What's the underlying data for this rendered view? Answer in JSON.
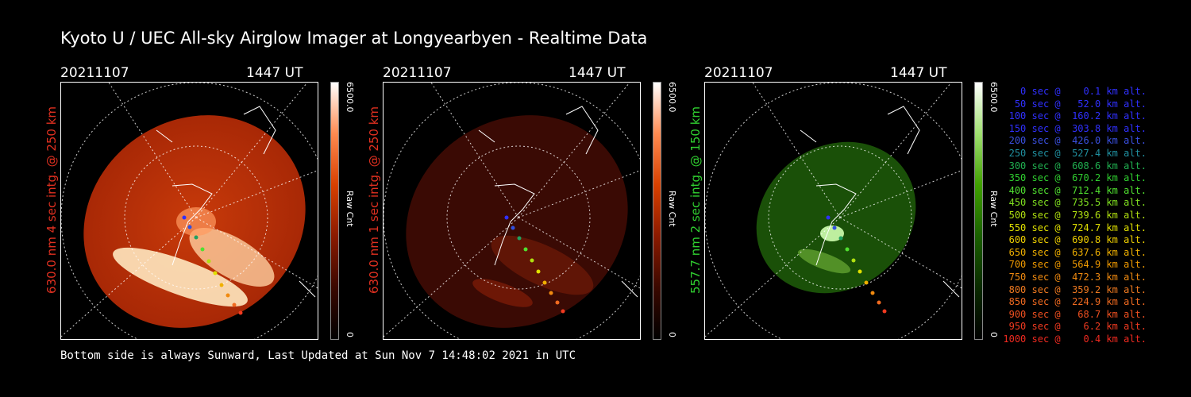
{
  "title": "Kyoto U / UEC All-sky Airglow Imager at Longyearbyen - Realtime Data",
  "panels": [
    {
      "date": "20211107",
      "time": "1447 UT",
      "side_label": "630.0 nm 4 sec intg. @ 250 km",
      "label_color": "#e03020",
      "colorbar": {
        "max": "6500.0",
        "min": "0",
        "unit": "Raw Cnt",
        "gradient": [
          "#000000",
          "#3a0800",
          "#8a1a00",
          "#d84000",
          "#ff8a50",
          "#ffffff"
        ]
      }
    },
    {
      "date": "20211107",
      "time": "1447 UT",
      "side_label": "630.0 nm 1 sec intg. @ 250 km",
      "label_color": "#e03020",
      "colorbar": {
        "max": "6500.0",
        "min": "0",
        "unit": "Raw Cnt",
        "gradient": [
          "#000000",
          "#3a0800",
          "#8a1a00",
          "#d84000",
          "#ff8a50",
          "#ffffff"
        ]
      }
    },
    {
      "date": "20211107",
      "time": "1447 UT",
      "side_label": "557.7 nm 2 sec intg. @ 150 km",
      "label_color": "#30d030",
      "colorbar": {
        "max": "6500.0",
        "min": "0",
        "unit": "Raw Cnt",
        "gradient": [
          "#000000",
          "#0a2a00",
          "#1a6000",
          "#40a000",
          "#a0e070",
          "#ffffff"
        ]
      }
    }
  ],
  "footer": "Bottom side is always Sunward, Last Updated at Sun Nov  7 14:48:02 2021 in UTC",
  "legend": [
    {
      "text": "   0 sec @    0.1 km alt.",
      "color": "#3030ff"
    },
    {
      "text": "  50 sec @   52.0 km alt.",
      "color": "#3030ff"
    },
    {
      "text": " 100 sec @  160.2 km alt.",
      "color": "#3030ff"
    },
    {
      "text": " 150 sec @  303.8 km alt.",
      "color": "#3030ff"
    },
    {
      "text": " 200 sec @  426.0 km alt.",
      "color": "#3a50e0"
    },
    {
      "text": " 250 sec @  527.4 km alt.",
      "color": "#2090a0"
    },
    {
      "text": " 300 sec @  608.6 km alt.",
      "color": "#20b050"
    },
    {
      "text": " 350 sec @  670.2 km alt.",
      "color": "#30d030"
    },
    {
      "text": " 400 sec @  712.4 km alt.",
      "color": "#50e030"
    },
    {
      "text": " 450 sec @  735.5 km alt.",
      "color": "#80e020"
    },
    {
      "text": " 500 sec @  739.6 km alt.",
      "color": "#b0e010"
    },
    {
      "text": " 550 sec @  724.7 km alt.",
      "color": "#e0e000"
    },
    {
      "text": " 600 sec @  690.8 km alt.",
      "color": "#f0d000"
    },
    {
      "text": " 650 sec @  637.6 km alt.",
      "color": "#f0b000"
    },
    {
      "text": " 700 sec @  564.9 km alt.",
      "color": "#f09a00"
    },
    {
      "text": " 750 sec @  472.3 km alt.",
      "color": "#f08a10"
    },
    {
      "text": " 800 sec @  359.2 km alt.",
      "color": "#f07a20"
    },
    {
      "text": " 850 sec @  224.9 km alt.",
      "color": "#f06a20"
    },
    {
      "text": " 900 sec @   68.7 km alt.",
      "color": "#f05020"
    },
    {
      "text": " 950 sec @    6.2 km alt.",
      "color": "#f03a20"
    },
    {
      "text": "1000 sec @    0.4 km alt.",
      "color": "#f02a20"
    }
  ]
}
